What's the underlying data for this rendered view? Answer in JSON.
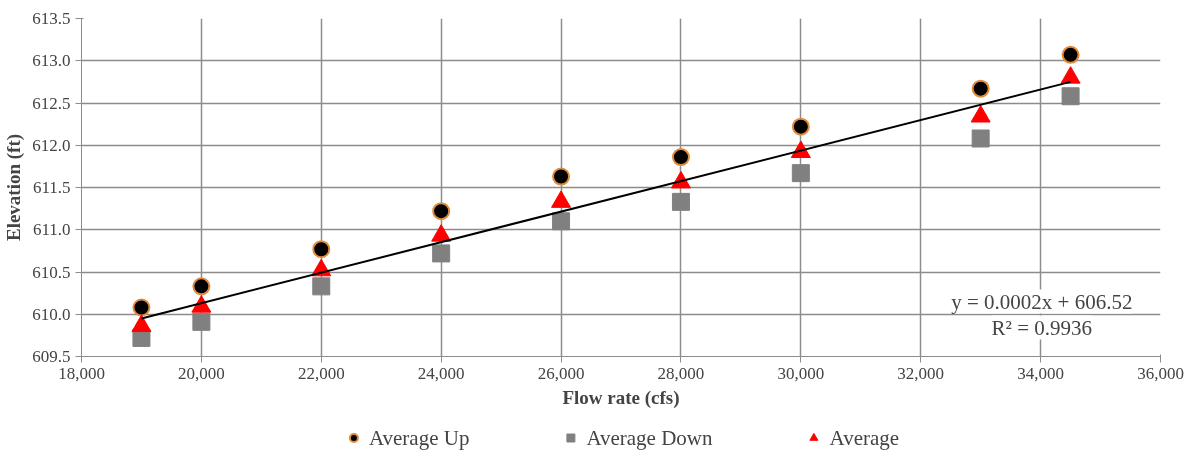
{
  "chart_data": {
    "type": "scatter",
    "xlabel": "Flow rate (cfs)",
    "ylabel": "Elevation (ft)",
    "x": [
      19000,
      20000,
      22000,
      24000,
      26000,
      28000,
      30000,
      33000,
      34500
    ],
    "series": [
      {
        "name": "Average Up",
        "color": "#000000",
        "marker": "circle",
        "values": [
          610.08,
          610.33,
          610.77,
          611.22,
          611.63,
          611.86,
          612.22,
          612.67,
          613.07
        ]
      },
      {
        "name": "Average Down",
        "color": "#808080",
        "marker": "square",
        "values": [
          609.72,
          609.91,
          610.33,
          610.72,
          611.1,
          611.33,
          611.67,
          612.08,
          612.58
        ]
      },
      {
        "name": "Average",
        "color": "#ff0000",
        "marker": "triangle",
        "values": [
          609.86,
          610.09,
          610.52,
          610.93,
          611.33,
          611.56,
          611.92,
          612.34,
          612.8
        ]
      },
      {
        "type": "line",
        "color": "#000000",
        "x": [
          19000,
          34500
        ],
        "values": [
          609.95,
          612.75
        ]
      }
    ],
    "xlim": [
      18000,
      36000
    ],
    "xticks": [
      {
        "value": 18000,
        "label": "18,000"
      },
      {
        "value": 20000,
        "label": "20,000"
      },
      {
        "value": 22000,
        "label": "22,000"
      },
      {
        "value": 24000,
        "label": "24,000"
      },
      {
        "value": 26000,
        "label": "26,000"
      },
      {
        "value": 28000,
        "label": "28,000"
      },
      {
        "value": 30000,
        "label": "30,000"
      },
      {
        "value": 32000,
        "label": "32,000"
      },
      {
        "value": 34000,
        "label": "34,000"
      },
      {
        "value": 36000,
        "label": "36,000"
      }
    ],
    "ylim": [
      609.5,
      613.5
    ],
    "yticks": [
      {
        "value": 609.5,
        "label": "609.5"
      },
      {
        "value": 610,
        "label": "610.0"
      },
      {
        "value": 610.5,
        "label": "610.5"
      },
      {
        "value": 611,
        "label": "611.0"
      },
      {
        "value": 611.5,
        "label": "611.5"
      },
      {
        "value": 612,
        "label": "612.0"
      },
      {
        "value": 612.5,
        "label": "612.5"
      },
      {
        "value": 613,
        "label": "613.0"
      },
      {
        "value": 613.5,
        "label": "613.5"
      }
    ],
    "annotations": [
      "y = 0.0002x + 606.52",
      "R² = 0.9936"
    ],
    "grid": true,
    "legend": "bottom"
  }
}
